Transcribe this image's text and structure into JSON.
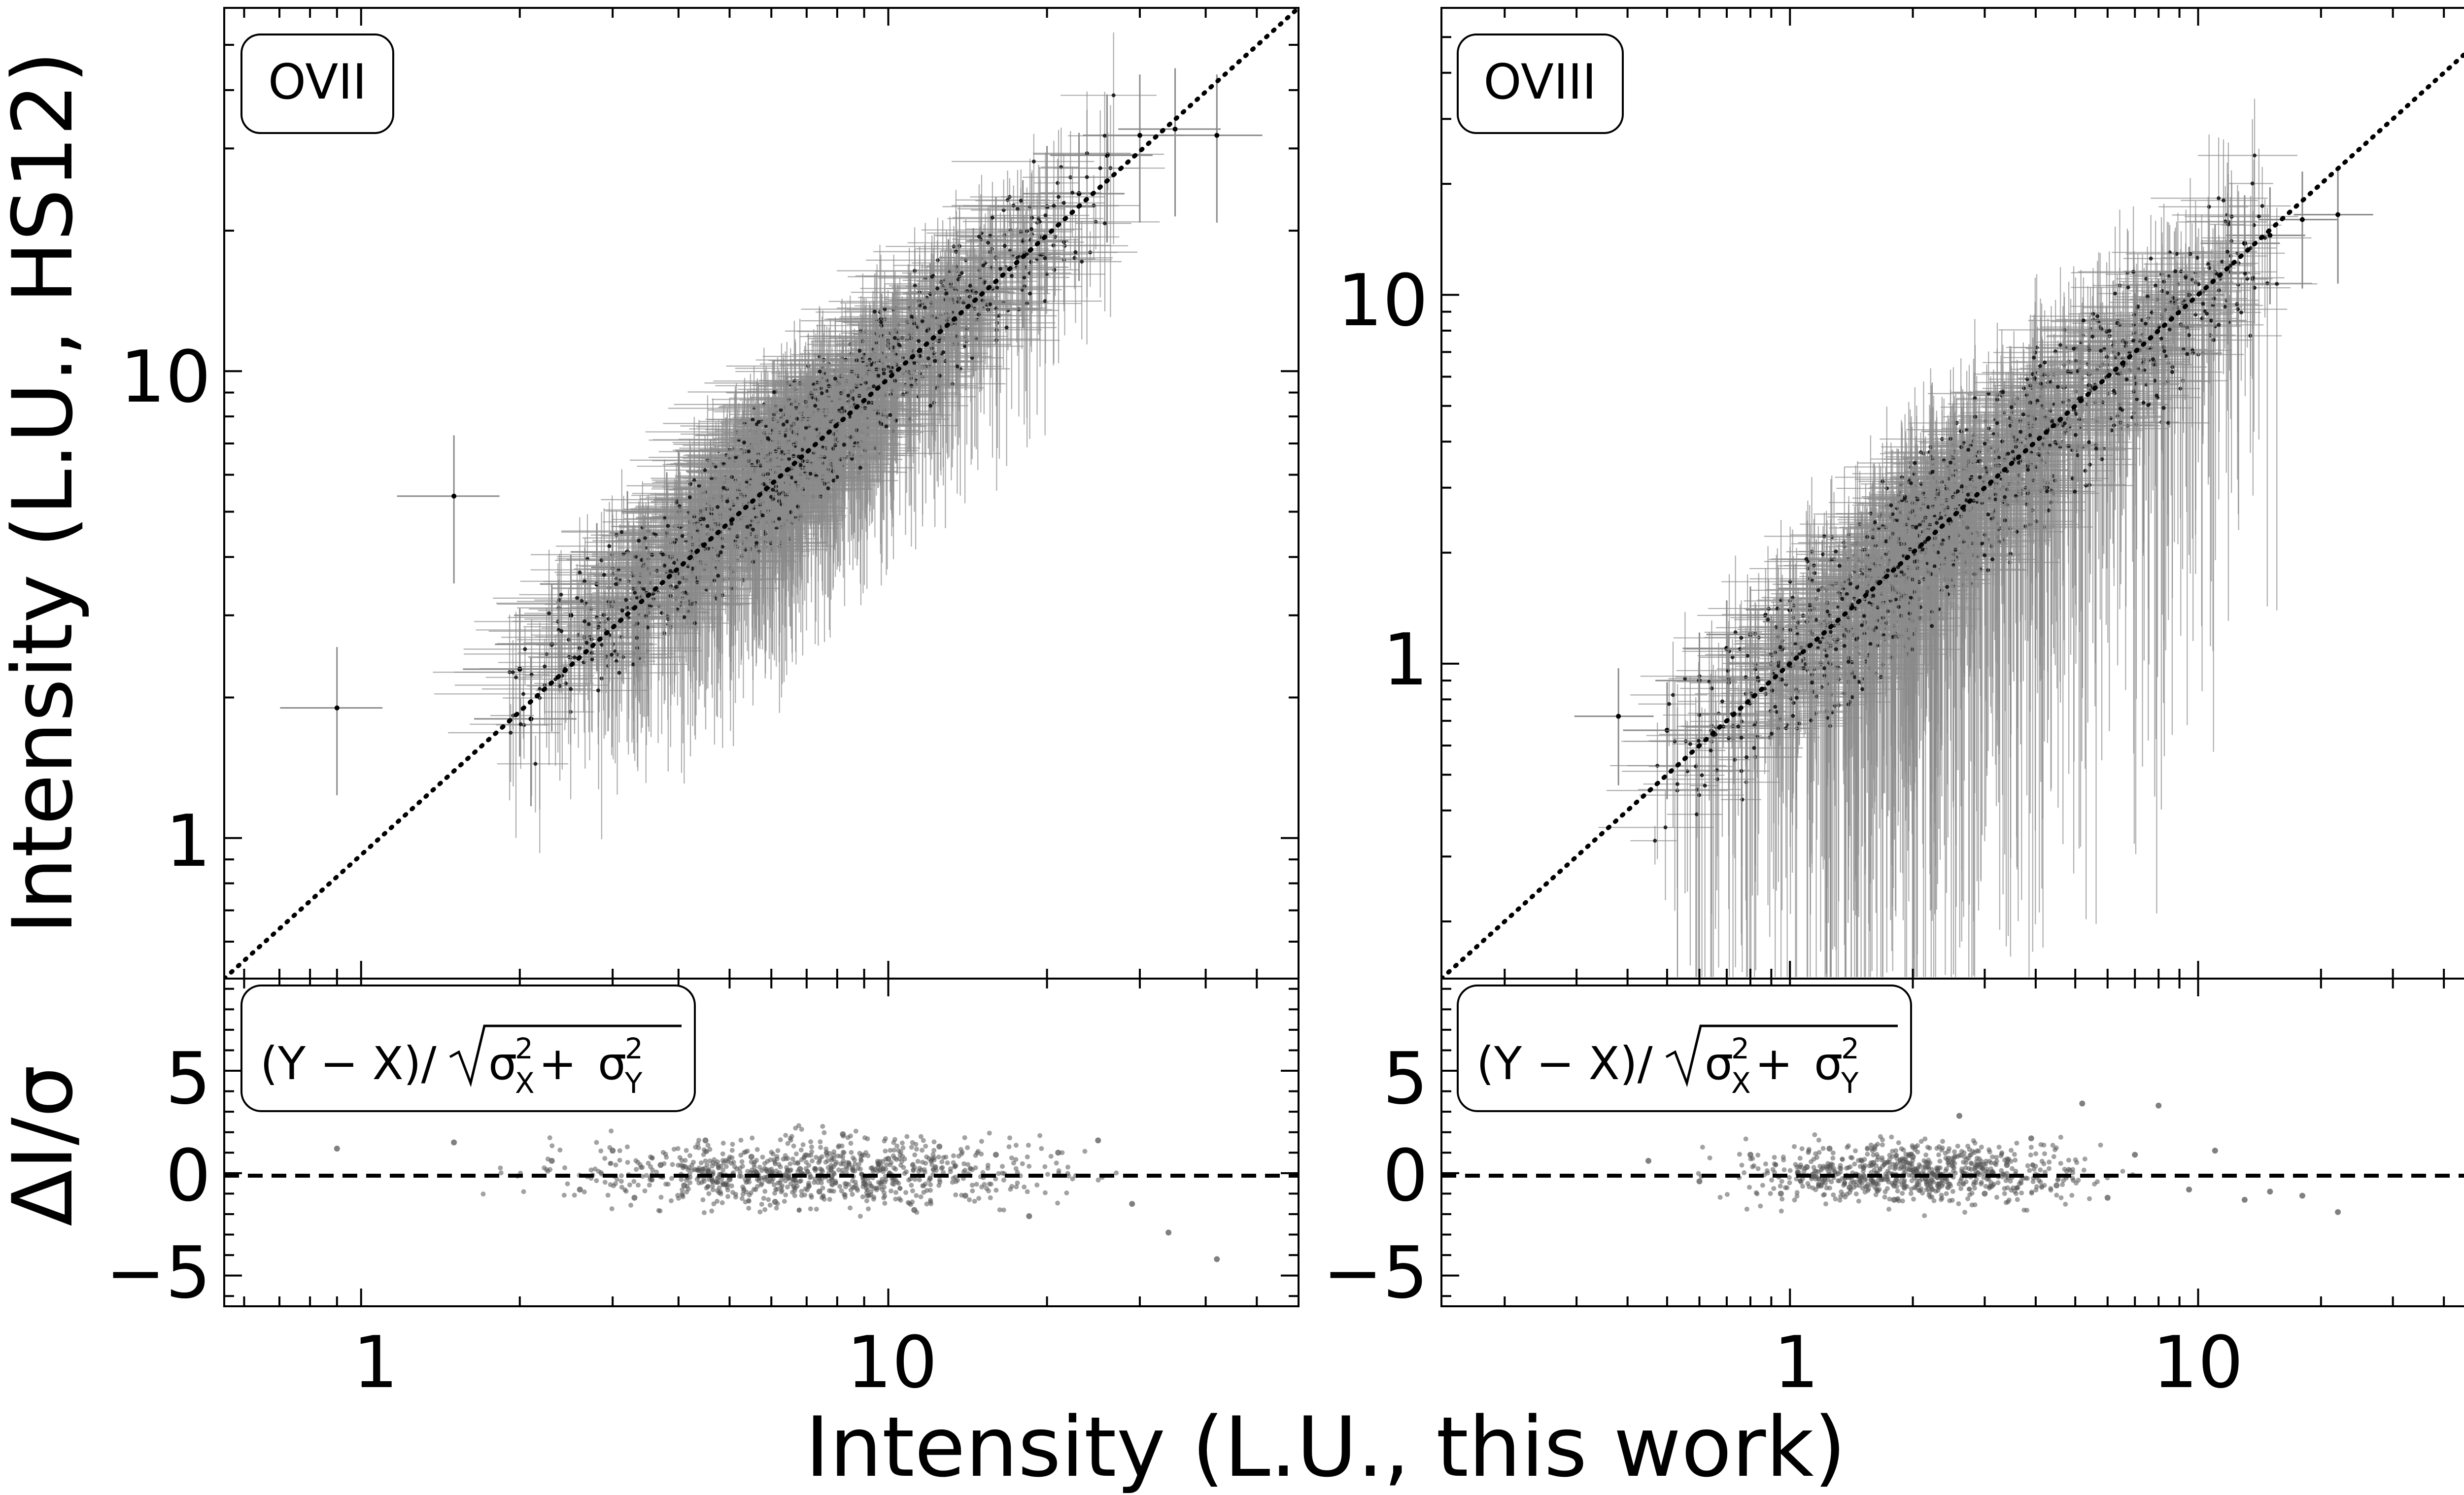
{
  "chart_data": [
    {
      "type": "scatter",
      "panel": "OVII",
      "label": "OVII",
      "xscale": "log",
      "yscale": "log",
      "xlim": [
        0.55,
        60
      ],
      "ylim": [
        0.5,
        60
      ],
      "ylabel": "Intensity (L.U., HS12)",
      "x_ticks": [
        "1",
        "10"
      ],
      "y_ticks": [
        "1",
        "10"
      ],
      "identity_line": "dotted y = x",
      "series": [
        {
          "description": "HS12 intensity vs this work, with x/y error bars",
          "points": [
            [
              0.9,
              1.9
            ],
            [
              1.5,
              5.4
            ],
            [
              2.0,
              2.3
            ],
            [
              2.1,
              1.8
            ],
            [
              2.3,
              2.6
            ],
            [
              2.5,
              3.0
            ],
            [
              2.8,
              3.5
            ],
            [
              3.0,
              3.2
            ],
            [
              3.2,
              4.1
            ],
            [
              3.5,
              3.8
            ],
            [
              3.8,
              4.5
            ],
            [
              4.0,
              5.0
            ],
            [
              4.3,
              4.2
            ],
            [
              4.6,
              5.3
            ],
            [
              5.0,
              5.6
            ],
            [
              5.3,
              6.1
            ],
            [
              5.6,
              5.0
            ],
            [
              6.0,
              6.5
            ],
            [
              6.4,
              7.2
            ],
            [
              6.8,
              6.6
            ],
            [
              7.2,
              7.8
            ],
            [
              7.7,
              8.1
            ],
            [
              8.2,
              8.6
            ],
            [
              8.8,
              9.4
            ],
            [
              9.5,
              9.8
            ],
            [
              10.2,
              10.9
            ],
            [
              11.0,
              12.0
            ],
            [
              12.0,
              12.6
            ],
            [
              13.0,
              14.2
            ],
            [
              14.5,
              15.0
            ],
            [
              16.0,
              17.5
            ],
            [
              18.0,
              19.0
            ],
            [
              20.0,
              22.5
            ],
            [
              23.0,
              24.0
            ],
            [
              26.0,
              29.0
            ],
            [
              30.0,
              32.0
            ],
            [
              35.0,
              33.0
            ],
            [
              42.0,
              32.0
            ]
          ]
        }
      ]
    },
    {
      "type": "scatter",
      "panel": "OVII residuals",
      "label": "(Y − X)/√(σX² + σY²)",
      "xscale": "log",
      "xlim": [
        0.55,
        60
      ],
      "ylim": [
        -6.5,
        9.5
      ],
      "ylabel": "ΔI/σ",
      "x_ticks": [
        "1",
        "10"
      ],
      "y_ticks": [
        "−5",
        "0",
        "5"
      ],
      "reference_line": "dashed y = 0",
      "series": [
        {
          "points": [
            [
              0.9,
              1.2
            ],
            [
              1.5,
              1.5
            ],
            [
              2.3,
              0.6
            ],
            [
              2.6,
              -0.8
            ],
            [
              3.0,
              1.1
            ],
            [
              3.3,
              -1.2
            ],
            [
              3.7,
              0.4
            ],
            [
              4.1,
              -0.6
            ],
            [
              4.5,
              1.6
            ],
            [
              5.0,
              -0.3
            ],
            [
              5.5,
              0.8
            ],
            [
              6.1,
              -1.4
            ],
            [
              6.8,
              0.2
            ],
            [
              7.4,
              -0.9
            ],
            [
              8.2,
              1.9
            ],
            [
              9.0,
              -0.5
            ],
            [
              10.0,
              0.7
            ],
            [
              11.2,
              -1.8
            ],
            [
              12.5,
              1.3
            ],
            [
              14.0,
              -1.1
            ],
            [
              16.0,
              0.9
            ],
            [
              18.5,
              -2.1
            ],
            [
              21.0,
              1.0
            ],
            [
              25.0,
              1.6
            ],
            [
              29.0,
              -1.5
            ],
            [
              34.0,
              -2.9
            ],
            [
              42.0,
              -4.2
            ]
          ]
        }
      ]
    },
    {
      "type": "scatter",
      "panel": "OVIII",
      "label": "OVIII",
      "xscale": "log",
      "yscale": "log",
      "xlim": [
        0.14,
        60
      ],
      "ylim": [
        0.14,
        60
      ],
      "y_ticks": [
        "1",
        "10"
      ],
      "identity_line": "dotted y = x",
      "series": [
        {
          "description": "HS12 intensity vs this work, with x/y error bars",
          "points": [
            [
              0.38,
              0.72
            ],
            [
              0.5,
              0.66
            ],
            [
              0.6,
              0.9
            ],
            [
              0.7,
              1.1
            ],
            [
              0.8,
              1.2
            ],
            [
              0.9,
              1.0
            ],
            [
              1.0,
              1.4
            ],
            [
              1.1,
              1.3
            ],
            [
              1.2,
              1.6
            ],
            [
              1.35,
              1.5
            ],
            [
              1.5,
              1.9
            ],
            [
              1.65,
              1.7
            ],
            [
              1.8,
              2.1
            ],
            [
              2.0,
              2.3
            ],
            [
              2.2,
              2.0
            ],
            [
              2.4,
              2.6
            ],
            [
              2.7,
              2.8
            ],
            [
              3.0,
              3.2
            ],
            [
              3.4,
              3.4
            ],
            [
              3.8,
              4.1
            ],
            [
              4.3,
              4.6
            ],
            [
              4.8,
              4.3
            ],
            [
              5.4,
              5.6
            ],
            [
              6.0,
              6.2
            ],
            [
              7.0,
              7.5
            ],
            [
              8.0,
              8.2
            ],
            [
              9.5,
              10.0
            ],
            [
              11.0,
              11.5
            ],
            [
              13.0,
              13.8
            ],
            [
              15.0,
              14.5
            ],
            [
              18.0,
              16.0
            ],
            [
              22.0,
              16.5
            ]
          ]
        }
      ]
    },
    {
      "type": "scatter",
      "panel": "OVIII residuals",
      "label": "(Y − X)/√(σX² + σY²)",
      "xscale": "log",
      "xlim": [
        0.14,
        60
      ],
      "ylim": [
        -6.5,
        9.5
      ],
      "y_ticks": [
        "−5",
        "0",
        "5"
      ],
      "reference_line": "dashed y = 0",
      "series": [
        {
          "points": [
            [
              0.45,
              0.6
            ],
            [
              0.6,
              -0.4
            ],
            [
              0.8,
              0.9
            ],
            [
              0.95,
              -1.0
            ],
            [
              1.1,
              0.3
            ],
            [
              1.25,
              1.2
            ],
            [
              1.4,
              -0.7
            ],
            [
              1.6,
              0.5
            ],
            [
              1.8,
              -1.3
            ],
            [
              2.0,
              0.8
            ],
            [
              2.3,
              -0.2
            ],
            [
              2.6,
              2.8
            ],
            [
              3.0,
              -1.0
            ],
            [
              3.4,
              0.4
            ],
            [
              3.9,
              1.7
            ],
            [
              4.5,
              -0.6
            ],
            [
              5.2,
              3.4
            ],
            [
              6.0,
              -1.2
            ],
            [
              7.0,
              0.9
            ],
            [
              8.0,
              3.3
            ],
            [
              9.5,
              -0.8
            ],
            [
              11.0,
              1.1
            ],
            [
              13.0,
              -1.3
            ],
            [
              15.0,
              -0.9
            ],
            [
              18.0,
              -1.1
            ],
            [
              22.0,
              -1.9
            ]
          ]
        }
      ]
    }
  ],
  "axes": {
    "xlabel": "Intensity (L.U., this work)",
    "ylabel_main": "Intensity (L.U., HS12)",
    "ylabel_resid": "ΔI/σ",
    "x_tick_1": "1",
    "x_tick_10": "10",
    "y_tick_1": "1",
    "y_tick_10": "10",
    "r_tick_m5": "−5",
    "r_tick_0": "0",
    "r_tick_5": "5"
  },
  "labels": {
    "ovii": "OVII",
    "oviii": "OVIII",
    "formula_head": "(Y − X)/",
    "formula_sigma": "σ",
    "formula_plus": " + ",
    "formula_sup": "2",
    "formula_sub_x": "X",
    "formula_sub_y": "Y"
  },
  "colors": {
    "points": "#000000",
    "errorbars": "#8a8a8a",
    "residual_points": "#555555"
  }
}
